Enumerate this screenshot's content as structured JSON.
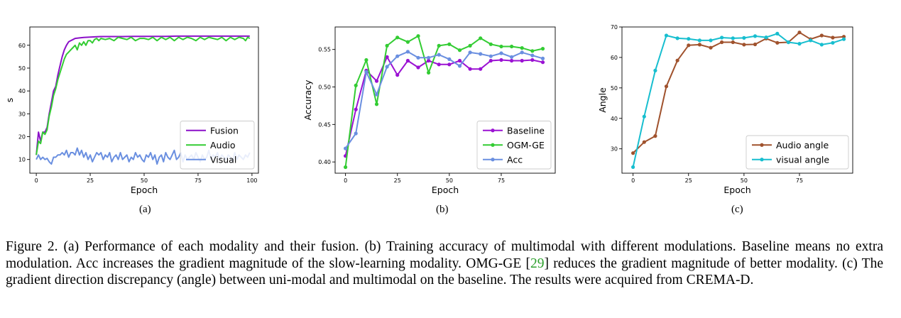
{
  "figure": {
    "caption": {
      "part1": "Figure 2.  (a) Performance of each modality and their fusion. (b) Training accuracy of multimodal with different modulations. Baseline means no extra modulation.  Acc increases the gradient magnitude of the slow-learning modality.  OMG-GE [",
      "ref": "29",
      "part2": "] reduces the gradient magnitude of better modality.  (c) The gradient direction discrepancy (angle) between uni-modal and multimodal on the baseline.  The results were acquired from CREMA-D."
    },
    "panel_labels": [
      "(a)",
      "(b)",
      "(c)"
    ]
  },
  "chart_data": [
    {
      "type": "line",
      "xlabel": "Epoch",
      "ylabel": "s",
      "xlim": [
        -3,
        103
      ],
      "ylim": [
        4,
        68
      ],
      "xticks": [
        0,
        25,
        50,
        75,
        100
      ],
      "yticks": [
        10,
        20,
        30,
        40,
        50,
        60
      ],
      "grid": false,
      "legend": "lower-right",
      "series": [
        {
          "name": "Fusion",
          "color": "#8b10c8",
          "marker": "none",
          "x": [
            0,
            1,
            2,
            3,
            4,
            5,
            6,
            7,
            8,
            9,
            10,
            11,
            12,
            13,
            14,
            15,
            16,
            17,
            18,
            20,
            22,
            25,
            28,
            30,
            35,
            40,
            45,
            50,
            55,
            60,
            65,
            70,
            75,
            80,
            85,
            90,
            95,
            99
          ],
          "y": [
            12,
            22,
            18,
            22,
            22,
            24,
            30,
            35,
            40,
            42,
            47,
            51,
            55,
            58,
            60,
            61.5,
            62,
            62.5,
            63,
            63.2,
            63.4,
            63.6,
            63.7,
            63.8,
            63.8,
            63.8,
            63.9,
            63.9,
            63.9,
            63.9,
            64,
            64,
            64,
            64,
            64,
            64,
            64,
            64
          ]
        },
        {
          "name": "Audio",
          "color": "#33cc33",
          "marker": "none",
          "x": [
            0,
            1,
            2,
            3,
            4,
            5,
            6,
            7,
            8,
            9,
            10,
            11,
            12,
            13,
            14,
            15,
            16,
            17,
            18,
            19,
            20,
            21,
            22,
            23,
            24,
            25,
            26,
            27,
            28,
            29,
            30,
            32,
            34,
            36,
            38,
            40,
            42,
            44,
            46,
            48,
            50,
            52,
            54,
            56,
            58,
            60,
            62,
            64,
            66,
            68,
            70,
            72,
            74,
            76,
            78,
            80,
            82,
            84,
            86,
            88,
            90,
            92,
            94,
            96,
            97,
            98,
            99
          ],
          "y": [
            12,
            18,
            17,
            22,
            21,
            23,
            29,
            33,
            38,
            41,
            45,
            48,
            51,
            54,
            56,
            57,
            58,
            59,
            60,
            58,
            61,
            60,
            61.5,
            60,
            62,
            62,
            61,
            62.5,
            63,
            62,
            63,
            62.5,
            63,
            62,
            63.5,
            63,
            62.5,
            63.5,
            62,
            63,
            63,
            62.5,
            63.5,
            62,
            63.5,
            62.5,
            63.5,
            62,
            63.5,
            62.5,
            63.5,
            63,
            62,
            63.5,
            62.5,
            63.5,
            63,
            62.5,
            63.5,
            62,
            63.5,
            62.5,
            63.5,
            63,
            62,
            63.5,
            63
          ]
        },
        {
          "name": "Visual",
          "color": "#6a8fe0",
          "marker": "none",
          "x": [
            0,
            1,
            2,
            3,
            4,
            5,
            6,
            7,
            8,
            9,
            10,
            11,
            12,
            13,
            14,
            15,
            16,
            17,
            18,
            19,
            20,
            21,
            22,
            23,
            24,
            25,
            26,
            27,
            28,
            29,
            30,
            31,
            32,
            33,
            34,
            35,
            36,
            37,
            38,
            39,
            40,
            41,
            42,
            43,
            44,
            45,
            46,
            47,
            48,
            49,
            50,
            51,
            52,
            53,
            54,
            55,
            56,
            57,
            58,
            59,
            60,
            61,
            62,
            63,
            64,
            65,
            66,
            67,
            68,
            69,
            70,
            71,
            72,
            73,
            74,
            75,
            76,
            77,
            78,
            79,
            80,
            81,
            82,
            83,
            84,
            85,
            86,
            87,
            88,
            89,
            90,
            91,
            92,
            93,
            94,
            95,
            96,
            97,
            98,
            99
          ],
          "y": [
            10,
            12,
            10,
            11,
            10,
            10.5,
            9,
            8,
            11,
            11,
            12,
            12,
            13,
            12,
            14,
            11,
            13,
            13,
            12,
            15,
            12,
            14,
            11,
            13,
            10,
            12,
            9,
            11,
            13,
            12,
            13,
            10,
            12,
            11,
            13,
            9,
            11,
            12,
            10,
            13,
            10,
            11,
            12,
            9,
            11,
            10,
            13,
            11,
            12,
            10,
            9,
            12,
            11,
            13,
            10,
            12,
            8,
            11,
            12,
            9,
            13,
            11,
            10,
            12,
            14,
            10,
            11,
            13,
            9,
            12,
            10,
            11,
            12,
            10,
            13,
            11,
            9,
            12,
            10,
            11,
            14,
            10,
            12,
            11,
            13,
            10,
            12,
            11,
            10,
            12,
            11,
            9,
            13,
            10,
            12,
            11,
            10,
            12,
            11,
            13
          ]
        }
      ]
    },
    {
      "type": "line",
      "xlabel": "Epoch",
      "ylabel": "Accuracy",
      "xlim": [
        -5,
        101
      ],
      "ylim": [
        0.385,
        0.58
      ],
      "xticks": [
        0,
        25,
        50,
        75
      ],
      "yticks": [
        0.4,
        0.45,
        0.5,
        0.55
      ],
      "grid": false,
      "legend": "lower-right",
      "series": [
        {
          "name": "Baseline",
          "color": "#9b12d3",
          "marker": "circle",
          "x": [
            0,
            5,
            10,
            15,
            20,
            25,
            30,
            35,
            40,
            45,
            50,
            55,
            60,
            65,
            70,
            75,
            80,
            85,
            90,
            95
          ],
          "y": [
            0.408,
            0.47,
            0.522,
            0.508,
            0.54,
            0.516,
            0.535,
            0.526,
            0.535,
            0.53,
            0.53,
            0.535,
            0.524,
            0.524,
            0.535,
            0.536,
            0.535,
            0.535,
            0.536,
            0.533
          ]
        },
        {
          "name": "OGM-GE",
          "color": "#33cc33",
          "marker": "circle",
          "x": [
            0,
            5,
            10,
            15,
            20,
            25,
            30,
            35,
            40,
            45,
            50,
            55,
            60,
            65,
            70,
            75,
            80,
            85,
            90,
            95
          ],
          "y": [
            0.393,
            0.502,
            0.536,
            0.477,
            0.555,
            0.566,
            0.56,
            0.568,
            0.519,
            0.555,
            0.557,
            0.549,
            0.555,
            0.565,
            0.557,
            0.554,
            0.554,
            0.552,
            0.548,
            0.551
          ]
        },
        {
          "name": "Acc",
          "color": "#6a8fe0",
          "marker": "circle",
          "x": [
            0,
            5,
            10,
            15,
            20,
            25,
            30,
            35,
            40,
            45,
            50,
            55,
            60,
            65,
            70,
            75,
            80,
            85,
            90,
            95
          ],
          "y": [
            0.418,
            0.438,
            0.52,
            0.49,
            0.527,
            0.541,
            0.547,
            0.539,
            0.539,
            0.543,
            0.537,
            0.528,
            0.546,
            0.544,
            0.541,
            0.545,
            0.54,
            0.546,
            0.542,
            0.538
          ]
        }
      ]
    },
    {
      "type": "line",
      "xlabel": "Epoch",
      "ylabel": "Angle",
      "xlim": [
        -5,
        99
      ],
      "ylim": [
        22,
        70
      ],
      "xticks": [
        0,
        25,
        50,
        75
      ],
      "yticks": [
        30,
        40,
        50,
        60,
        70
      ],
      "grid": false,
      "legend": "lower-right",
      "series": [
        {
          "name": "Audio angle",
          "color": "#a0522d",
          "marker": "circle",
          "x": [
            0,
            5,
            10,
            15,
            20,
            25,
            30,
            35,
            40,
            45,
            50,
            55,
            60,
            65,
            70,
            75,
            80,
            85,
            90,
            95
          ],
          "y": [
            28.6,
            32.2,
            34.2,
            50.5,
            59.0,
            64.0,
            64.2,
            63.2,
            65.0,
            65.0,
            64.2,
            64.3,
            66.2,
            64.8,
            65.0,
            68.2,
            66.0,
            67.2,
            66.5,
            66.8
          ]
        },
        {
          "name": "visual angle",
          "color": "#17becf",
          "marker": "circle",
          "x": [
            0,
            5,
            10,
            15,
            20,
            25,
            30,
            35,
            40,
            45,
            50,
            55,
            60,
            65,
            70,
            75,
            80,
            85,
            90,
            95
          ],
          "y": [
            24.0,
            40.6,
            55.7,
            67.2,
            66.3,
            66.1,
            65.6,
            65.6,
            66.5,
            66.3,
            66.4,
            67.0,
            66.6,
            67.8,
            65.0,
            64.5,
            65.6,
            64.2,
            64.8,
            66.0
          ]
        }
      ]
    }
  ]
}
